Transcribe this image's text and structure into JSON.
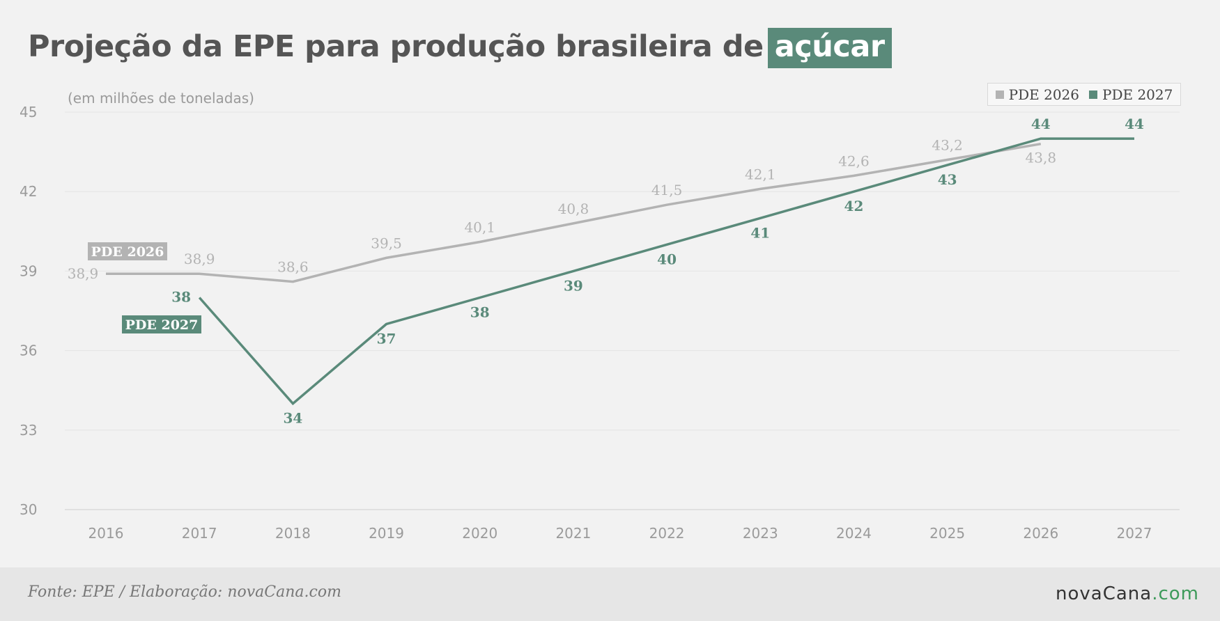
{
  "header": {
    "title_main": "Projeção da EPE para produção brasileira de",
    "title_highlight": "açúcar",
    "subtitle": "(em milhões de toneladas)"
  },
  "legend": {
    "items": [
      {
        "label": "PDE 2026",
        "color": "#b3b3b3"
      },
      {
        "label": "PDE 2027",
        "color": "#5a8a7a"
      }
    ]
  },
  "footer": {
    "source": "Fonte: EPE / Elaboração: novaCana.com",
    "logo_main": "novaCana",
    "logo_suffix": ".com"
  },
  "chart_data": {
    "type": "line",
    "title": "Projeção da EPE para produção brasileira de açúcar",
    "subtitle": "(em milhões de toneladas)",
    "x": [
      "2016",
      "2017",
      "2018",
      "2019",
      "2020",
      "2021",
      "2022",
      "2023",
      "2024",
      "2025",
      "2026",
      "2027"
    ],
    "ylim": [
      30,
      45
    ],
    "yticks": [
      "30",
      "33",
      "36",
      "39",
      "42",
      "45"
    ],
    "grid": true,
    "legend_position": "top-right",
    "series": [
      {
        "name": "PDE 2026",
        "color": "#b3b3b3",
        "tag": "PDE 2026",
        "values": [
          38.9,
          38.9,
          38.6,
          39.5,
          40.1,
          40.8,
          41.5,
          42.1,
          42.6,
          43.2,
          43.8,
          null
        ],
        "labels": [
          "38,9",
          "38,9",
          "38,6",
          "39,5",
          "40,1",
          "40,8",
          "41,5",
          "42,1",
          "42,6",
          "43,2",
          "43,8",
          ""
        ]
      },
      {
        "name": "PDE 2027",
        "color": "#5a8a7a",
        "tag": "PDE 2027",
        "values": [
          null,
          38,
          34,
          37,
          38,
          39,
          40,
          41,
          42,
          43,
          44,
          44
        ],
        "labels": [
          "",
          "38",
          "34",
          "37",
          "38",
          "39",
          "40",
          "41",
          "42",
          "43",
          "44",
          "44"
        ]
      }
    ]
  }
}
